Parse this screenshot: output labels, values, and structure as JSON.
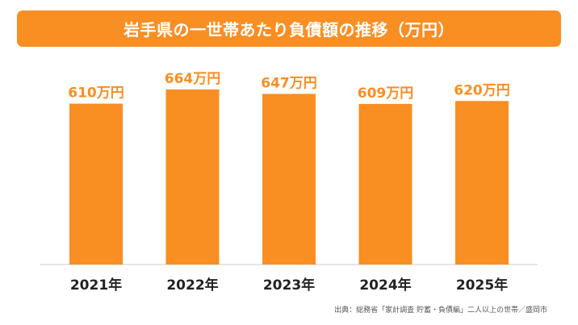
{
  "colors": {
    "accent": "#f98e23",
    "axis": "#cccccc",
    "text": "#222222"
  },
  "chart_data": {
    "type": "bar",
    "title": "岩手県の一世帯あたり負債額の推移（万円）",
    "categories": [
      "2021年",
      "2022年",
      "2023年",
      "2024年",
      "2025年"
    ],
    "values": [
      610,
      664,
      647,
      609,
      620
    ],
    "value_labels": [
      "610万円",
      "664万円",
      "647万円",
      "609万円",
      "620万円"
    ],
    "unit": "万円",
    "xlabel": "",
    "ylabel": "",
    "ylim": [
      0,
      700
    ],
    "grid": false,
    "legend": "none"
  },
  "source": "出典：総務省「家計調査 貯蓄・負債編」二人以上の世帯／盛岡市"
}
